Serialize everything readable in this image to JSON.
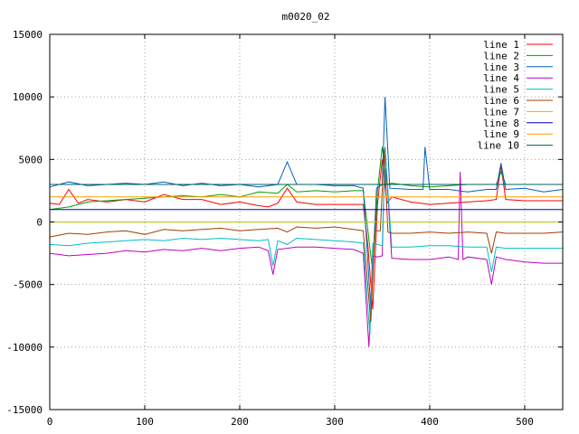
{
  "chart_data": {
    "type": "line",
    "title": "m0020_02",
    "xlim": [
      0,
      540
    ],
    "ylim": [
      -15000,
      15000
    ],
    "x_ticks": [
      0,
      100,
      200,
      300,
      400,
      500
    ],
    "y_ticks": [
      -15000,
      -10000,
      -5000,
      0,
      5000,
      10000,
      15000
    ],
    "grid": true,
    "legend_position": "top-right",
    "series": [
      {
        "name": "line 1",
        "color": "#ff0000",
        "x": [
          0,
          10,
          20,
          30,
          40,
          60,
          80,
          100,
          120,
          140,
          160,
          180,
          200,
          220,
          230,
          240,
          250,
          260,
          280,
          300,
          320,
          330,
          335,
          340,
          345,
          350,
          355,
          360,
          380,
          400,
          420,
          440,
          460,
          470,
          475,
          480,
          500,
          520,
          540
        ],
        "y": [
          1500,
          1400,
          2600,
          1500,
          1800,
          1600,
          1800,
          1600,
          2200,
          1800,
          1800,
          1400,
          1600,
          1300,
          1200,
          1500,
          2700,
          1600,
          1400,
          1400,
          1400,
          1400,
          -2000,
          -7000,
          1400,
          5000,
          1500,
          2000,
          1600,
          1400,
          1500,
          1600,
          1700,
          1800,
          4500,
          1800,
          1700,
          1700,
          1700
        ]
      },
      {
        "name": "line 2",
        "color": "#00a000",
        "x": [
          0,
          20,
          40,
          60,
          80,
          100,
          120,
          140,
          160,
          180,
          200,
          220,
          240,
          250,
          260,
          280,
          300,
          320,
          330,
          340,
          345,
          350,
          355,
          360,
          380,
          400,
          420,
          440,
          460,
          470,
          475,
          480,
          500,
          520,
          540
        ],
        "y": [
          1000,
          1200,
          1600,
          1700,
          1800,
          1900,
          2000,
          2100,
          2000,
          2200,
          2000,
          2400,
          2300,
          3000,
          2400,
          2500,
          2400,
          2500,
          2500,
          -4000,
          2500,
          6000,
          3000,
          3100,
          2900,
          2800,
          2900,
          3000,
          3000,
          3000,
          4000,
          3000,
          3000,
          3000,
          3000
        ]
      },
      {
        "name": "line 3",
        "color": "#0060c0",
        "x": [
          0,
          20,
          40,
          60,
          80,
          100,
          120,
          140,
          160,
          180,
          200,
          220,
          240,
          250,
          260,
          280,
          300,
          320,
          330,
          338,
          344,
          350,
          353,
          358,
          380,
          393,
          395,
          400,
          420,
          440,
          460,
          470,
          475,
          480,
          500,
          520,
          540
        ],
        "y": [
          2800,
          3200,
          2900,
          3000,
          3100,
          3000,
          3200,
          2900,
          3100,
          2900,
          3000,
          2800,
          3000,
          4800,
          3000,
          3000,
          2900,
          2900,
          2700,
          -7000,
          2700,
          3000,
          10000,
          2700,
          2600,
          2600,
          6000,
          2600,
          2600,
          2400,
          2600,
          2600,
          4700,
          2600,
          2700,
          2400,
          2600
        ]
      },
      {
        "name": "line 4",
        "color": "#c000c0",
        "x": [
          0,
          20,
          40,
          60,
          80,
          100,
          120,
          140,
          160,
          180,
          200,
          220,
          230,
          235,
          240,
          260,
          280,
          300,
          320,
          330,
          336,
          340,
          345,
          350,
          353,
          360,
          380,
          400,
          420,
          430,
          432,
          435,
          440,
          460,
          465,
          470,
          480,
          500,
          520,
          540
        ],
        "y": [
          -2500,
          -2700,
          -2600,
          -2500,
          -2300,
          -2400,
          -2200,
          -2300,
          -2100,
          -2300,
          -2100,
          -2000,
          -2300,
          -4200,
          -2200,
          -2000,
          -2000,
          -2100,
          -2200,
          -2500,
          -10000,
          -2700,
          -2800,
          -2700,
          6000,
          -2900,
          -3000,
          -3000,
          -2800,
          -3000,
          4000,
          -3000,
          -2800,
          -3000,
          -5000,
          -2800,
          -3000,
          -3200,
          -3300,
          -3300
        ]
      },
      {
        "name": "line 5",
        "color": "#00c0c0",
        "x": [
          0,
          20,
          40,
          60,
          80,
          100,
          120,
          140,
          160,
          180,
          200,
          220,
          230,
          235,
          240,
          250,
          260,
          280,
          300,
          320,
          330,
          337,
          340,
          345,
          350,
          353,
          360,
          380,
          400,
          420,
          440,
          460,
          465,
          470,
          480,
          500,
          520,
          540
        ],
        "y": [
          -1800,
          -1900,
          -1700,
          -1600,
          -1500,
          -1400,
          -1500,
          -1300,
          -1400,
          -1300,
          -1400,
          -1500,
          -1400,
          -3500,
          -1500,
          -1800,
          -1300,
          -1400,
          -1500,
          -1600,
          -1700,
          -9000,
          -1700,
          -1800,
          -1900,
          6000,
          -2000,
          -2000,
          -1900,
          -1900,
          -2000,
          -2000,
          -4000,
          -2000,
          -2100,
          -2100,
          -2100,
          -2100
        ]
      },
      {
        "name": "line 6",
        "color": "#a04000",
        "x": [
          0,
          20,
          40,
          60,
          80,
          100,
          120,
          140,
          160,
          180,
          200,
          220,
          240,
          250,
          260,
          280,
          300,
          320,
          330,
          338,
          342,
          348,
          352,
          356,
          360,
          380,
          400,
          420,
          440,
          460,
          465,
          470,
          480,
          500,
          520,
          540
        ],
        "y": [
          -1200,
          -900,
          -1000,
          -800,
          -700,
          -1000,
          -600,
          -700,
          -600,
          -500,
          -700,
          -600,
          -500,
          -800,
          -400,
          -500,
          -400,
          -600,
          -700,
          -8000,
          -700,
          -700,
          5800,
          -800,
          -900,
          -900,
          -800,
          -900,
          -800,
          -900,
          -2500,
          -800,
          -900,
          -900,
          -900,
          -800
        ]
      },
      {
        "name": "line 7",
        "color": "#c0c000",
        "x": [
          0,
          540
        ],
        "y": [
          0,
          0
        ]
      },
      {
        "name": "line 8",
        "color": "#0000c0",
        "x": [
          0,
          540
        ],
        "y": [
          1000,
          1000
        ]
      },
      {
        "name": "line 9",
        "color": "#ffa000",
        "x": [
          0,
          540
        ],
        "y": [
          2000,
          2000
        ]
      },
      {
        "name": "line 10",
        "color": "#006060",
        "x": [
          0,
          540
        ],
        "y": [
          3000,
          3000
        ]
      }
    ]
  }
}
